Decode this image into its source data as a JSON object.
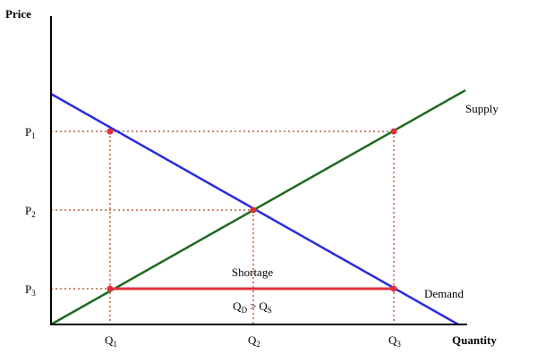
{
  "axes": {
    "y_label": "Price",
    "x_label": "Quantity"
  },
  "curves": {
    "supply": "Supply",
    "demand": "Demand"
  },
  "price_levels": [
    {
      "main": "P",
      "sub": "1"
    },
    {
      "main": "P",
      "sub": "2"
    },
    {
      "main": "P",
      "sub": "3"
    }
  ],
  "quantity_levels": [
    {
      "main": "Q",
      "sub": "1"
    },
    {
      "main": "Q",
      "sub": "2"
    },
    {
      "main": "Q",
      "sub": "3"
    }
  ],
  "shortage": {
    "label": "Shortage",
    "condition": {
      "left": "Q",
      "left_sub": "D",
      "operator": ">",
      "right": "Q",
      "right_sub": "S"
    }
  }
}
